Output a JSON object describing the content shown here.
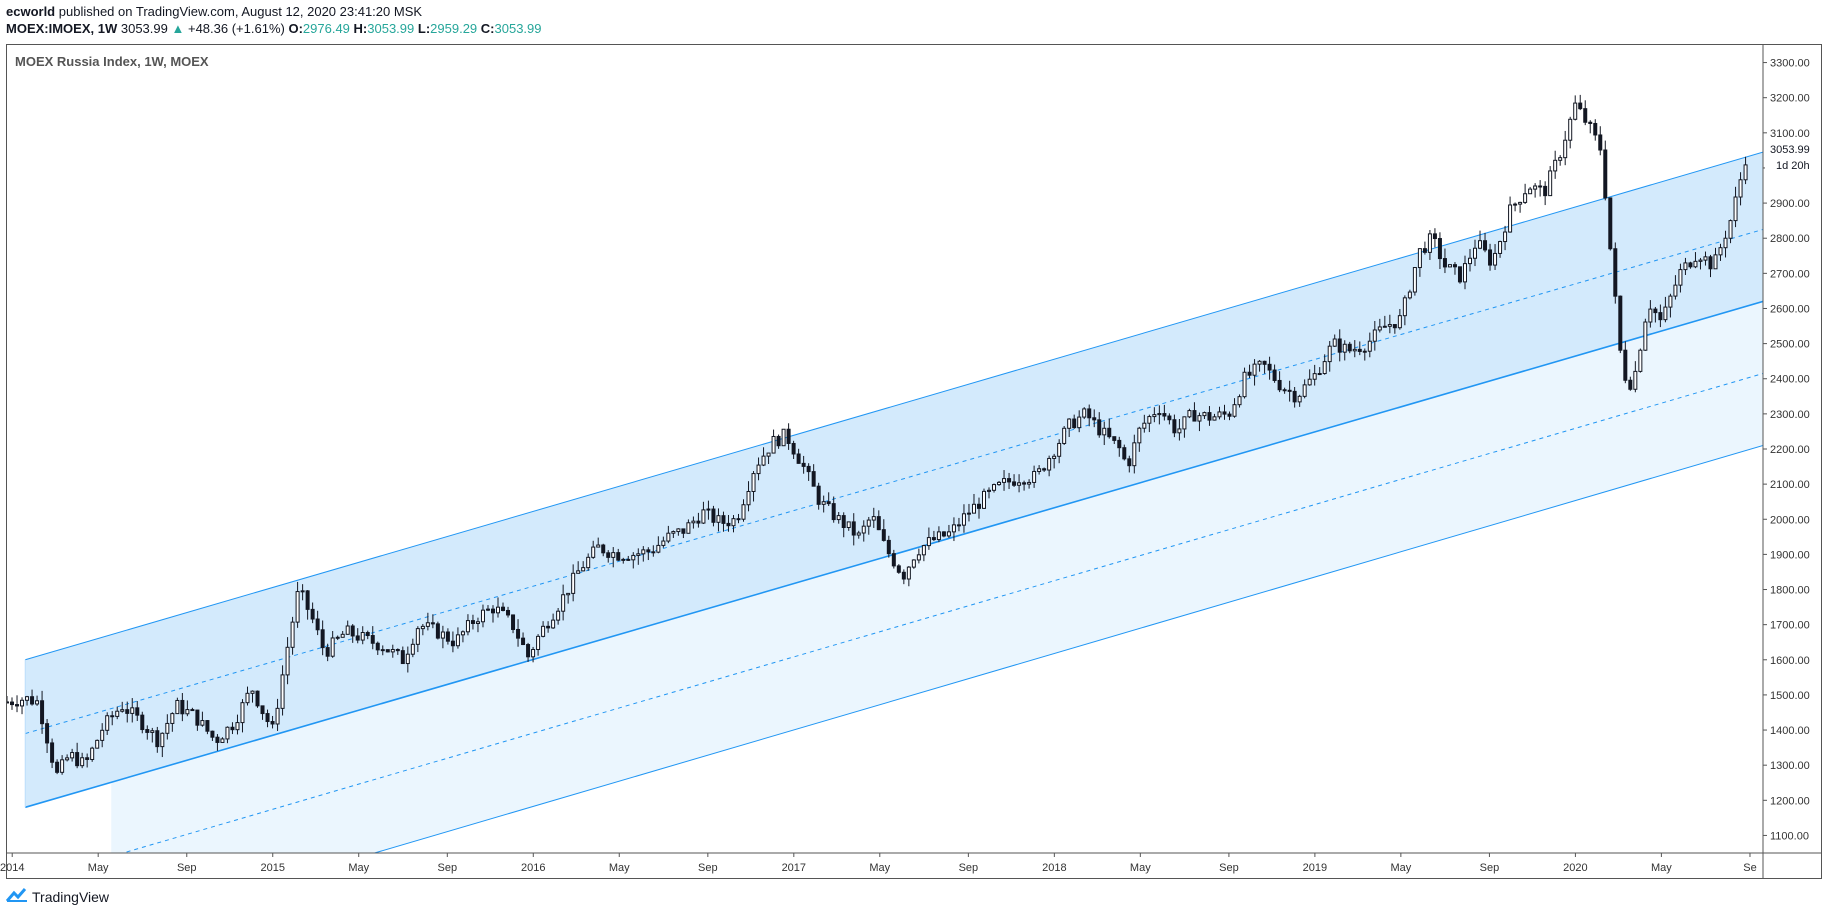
{
  "header": {
    "author": "ecworld",
    "published": "published on TradingView.com, August 12, 2020 23:41:20 MSK",
    "symbol": "MOEX:IMOEX, 1W",
    "last": "3053.99",
    "change_arrow": "▲",
    "change": "+48.36 (+1.61%)",
    "o_label": "O:",
    "o_value": "2976.49",
    "h_label": "H:",
    "h_value": "3053.99",
    "l_label": "L:",
    "l_value": "2959.29",
    "c_label": "C:",
    "c_value": "3053.99"
  },
  "chart_title": "MOEX Russia Index, 1W, MOEX",
  "footer": {
    "brand": "TradingView"
  },
  "colors": {
    "channel_line": "#2196f3",
    "channel_fill": "#bbdefb",
    "lower_fill": "#e3f2fd",
    "candle": "#131722",
    "price_label_bg": "#ffffff"
  },
  "chart_data": {
    "type": "candlestick",
    "ylim": [
      1050,
      3350
    ],
    "y_ticks": [
      1100,
      1200,
      1300,
      1400,
      1500,
      1600,
      1700,
      1800,
      1900,
      2000,
      2100,
      2200,
      2300,
      2400,
      2500,
      2600,
      2700,
      2800,
      2900,
      3000,
      3100,
      3200,
      3300
    ],
    "y_tick_labels": [
      "1100.00",
      "1200.00",
      "1300.00",
      "1400.00",
      "1500.00",
      "1600.00",
      "1700.00",
      "1800.00",
      "1900.00",
      "2000.00",
      "2100.00",
      "2200.00",
      "2300.00",
      "2400.00",
      "2500.00",
      "2600.00",
      "2700.00",
      "2800.00",
      "2900.00",
      "3000.00",
      "3100.00",
      "3200.00",
      "3300.00"
    ],
    "x_range": [
      2013.98,
      2020.72
    ],
    "x_ticks": [
      {
        "t": 2014.0,
        "label": "2014"
      },
      {
        "t": 2014.33,
        "label": "May"
      },
      {
        "t": 2014.67,
        "label": "Sep"
      },
      {
        "t": 2015.0,
        "label": "2015"
      },
      {
        "t": 2015.33,
        "label": "May"
      },
      {
        "t": 2015.67,
        "label": "Sep"
      },
      {
        "t": 2016.0,
        "label": "2016"
      },
      {
        "t": 2016.33,
        "label": "May"
      },
      {
        "t": 2016.67,
        "label": "Sep"
      },
      {
        "t": 2017.0,
        "label": "2017"
      },
      {
        "t": 2017.33,
        "label": "May"
      },
      {
        "t": 2017.67,
        "label": "Sep"
      },
      {
        "t": 2018.0,
        "label": "2018"
      },
      {
        "t": 2018.33,
        "label": "May"
      },
      {
        "t": 2018.67,
        "label": "Sep"
      },
      {
        "t": 2019.0,
        "label": "2019"
      },
      {
        "t": 2019.33,
        "label": "May"
      },
      {
        "t": 2019.67,
        "label": "Sep"
      },
      {
        "t": 2020.0,
        "label": "2020"
      },
      {
        "t": 2020.33,
        "label": "May"
      },
      {
        "t": 2020.67,
        "label": "Se"
      }
    ],
    "price_label": "3053.99",
    "countdown_label": "1d 20h",
    "price_path": [
      [
        2013.98,
        1480
      ],
      [
        2014.05,
        1490
      ],
      [
        2014.1,
        1480
      ],
      [
        2014.17,
        1270
      ],
      [
        2014.22,
        1330
      ],
      [
        2014.28,
        1300
      ],
      [
        2014.35,
        1410
      ],
      [
        2014.42,
        1470
      ],
      [
        2014.5,
        1420
      ],
      [
        2014.56,
        1370
      ],
      [
        2014.63,
        1470
      ],
      [
        2014.7,
        1440
      ],
      [
        2014.78,
        1370
      ],
      [
        2014.85,
        1420
      ],
      [
        2014.92,
        1520
      ],
      [
        2014.97,
        1440
      ],
      [
        2015.0,
        1400
      ],
      [
        2015.06,
        1650
      ],
      [
        2015.1,
        1800
      ],
      [
        2015.15,
        1720
      ],
      [
        2015.2,
        1620
      ],
      [
        2015.28,
        1680
      ],
      [
        2015.35,
        1660
      ],
      [
        2015.42,
        1640
      ],
      [
        2015.5,
        1600
      ],
      [
        2015.56,
        1700
      ],
      [
        2015.63,
        1680
      ],
      [
        2015.7,
        1650
      ],
      [
        2015.78,
        1720
      ],
      [
        2015.85,
        1750
      ],
      [
        2015.92,
        1700
      ],
      [
        2015.98,
        1610
      ],
      [
        2016.03,
        1680
      ],
      [
        2016.1,
        1760
      ],
      [
        2016.18,
        1860
      ],
      [
        2016.25,
        1920
      ],
      [
        2016.32,
        1900
      ],
      [
        2016.38,
        1900
      ],
      [
        2016.45,
        1910
      ],
      [
        2016.52,
        1950
      ],
      [
        2016.58,
        1970
      ],
      [
        2016.65,
        2020
      ],
      [
        2016.72,
        1990
      ],
      [
        2016.78,
        2000
      ],
      [
        2016.85,
        2150
      ],
      [
        2016.92,
        2220
      ],
      [
        2016.97,
        2240
      ],
      [
        2017.03,
        2160
      ],
      [
        2017.1,
        2050
      ],
      [
        2017.17,
        2000
      ],
      [
        2017.25,
        1950
      ],
      [
        2017.3,
        2010
      ],
      [
        2017.35,
        1920
      ],
      [
        2017.42,
        1840
      ],
      [
        2017.47,
        1910
      ],
      [
        2017.53,
        1940
      ],
      [
        2017.6,
        1960
      ],
      [
        2017.67,
        2020
      ],
      [
        2017.73,
        2060
      ],
      [
        2017.8,
        2100
      ],
      [
        2017.87,
        2120
      ],
      [
        2017.93,
        2120
      ],
      [
        2018.0,
        2200
      ],
      [
        2018.06,
        2270
      ],
      [
        2018.12,
        2300
      ],
      [
        2018.18,
        2250
      ],
      [
        2018.25,
        2200
      ],
      [
        2018.28,
        2150
      ],
      [
        2018.33,
        2260
      ],
      [
        2018.4,
        2320
      ],
      [
        2018.47,
        2250
      ],
      [
        2018.53,
        2300
      ],
      [
        2018.6,
        2290
      ],
      [
        2018.67,
        2300
      ],
      [
        2018.73,
        2400
      ],
      [
        2018.8,
        2440
      ],
      [
        2018.87,
        2380
      ],
      [
        2018.93,
        2350
      ],
      [
        2019.0,
        2410
      ],
      [
        2019.07,
        2500
      ],
      [
        2019.13,
        2480
      ],
      [
        2019.2,
        2500
      ],
      [
        2019.27,
        2550
      ],
      [
        2019.33,
        2570
      ],
      [
        2019.4,
        2760
      ],
      [
        2019.45,
        2800
      ],
      [
        2019.5,
        2720
      ],
      [
        2019.56,
        2690
      ],
      [
        2019.62,
        2790
      ],
      [
        2019.68,
        2730
      ],
      [
        2019.75,
        2880
      ],
      [
        2019.82,
        2950
      ],
      [
        2019.88,
        2930
      ],
      [
        2019.94,
        3040
      ],
      [
        2020.0,
        3180
      ],
      [
        2020.05,
        3120
      ],
      [
        2020.1,
        3050
      ],
      [
        2020.14,
        2720
      ],
      [
        2020.18,
        2420
      ],
      [
        2020.22,
        2380
      ],
      [
        2020.28,
        2620
      ],
      [
        2020.33,
        2560
      ],
      [
        2020.4,
        2700
      ],
      [
        2020.47,
        2760
      ],
      [
        2020.53,
        2720
      ],
      [
        2020.6,
        2860
      ],
      [
        2020.66,
        3050
      ]
    ],
    "channels": [
      {
        "name": "upper-channel",
        "t0": 2014.05,
        "t1": 2020.72,
        "upper": [
          1600,
          3045
        ],
        "mid": [
          1390,
          2825
        ],
        "lower": [
          1180,
          2620
        ]
      },
      {
        "name": "lower-channel",
        "t0": 2014.38,
        "t1": 2020.72,
        "mid": [
          1040,
          2415
        ],
        "lower": [
          830,
          2210
        ]
      }
    ]
  }
}
